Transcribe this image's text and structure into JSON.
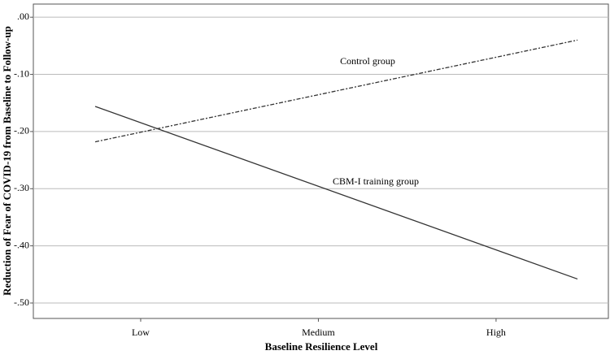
{
  "chart_data": {
    "type": "line",
    "x_label": "Baseline Resilience Level",
    "y_label": "Reduction of Fear of COVID-19 from Baseline to Follow-up",
    "xlim": [
      0.396,
      3.632
    ],
    "xticks": [
      {
        "value": 1,
        "label": "Low"
      },
      {
        "value": 2,
        "label": "Medium"
      },
      {
        "value": 3,
        "label": "High"
      }
    ],
    "ylim": [
      -0.527,
      0.023
    ],
    "yticks": [
      {
        "value": 0,
        "label": ".00"
      },
      {
        "value": -0.1,
        "label": "-.10"
      },
      {
        "value": -0.2,
        "label": "-.20"
      },
      {
        "value": -0.3,
        "label": "-.30"
      },
      {
        "value": -0.4,
        "label": "-.40"
      },
      {
        "value": -0.5,
        "label": "-.50"
      }
    ],
    "grid": true,
    "series": [
      {
        "name": "Control group",
        "color": "#333333",
        "line_style": "dashed",
        "x": [
          0.744,
          3.458
        ],
        "values": [
          -0.218,
          -0.04
        ]
      },
      {
        "name": "CBM-I training group",
        "color": "#333333",
        "line_style": "solid",
        "x": [
          0.744,
          3.458
        ],
        "values": [
          -0.156,
          -0.458
        ]
      }
    ]
  }
}
